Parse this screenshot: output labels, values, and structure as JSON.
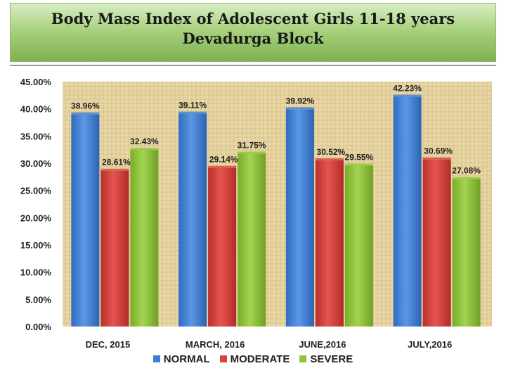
{
  "colors": {
    "normal": "#3d7fd6",
    "moderate": "#d9433f",
    "severe": "#8fc43a"
  },
  "chart_data": {
    "type": "bar",
    "title": "Body Mass Index of Adolescent Girls 11-18 years",
    "subtitle": "Devadurga Block",
    "categories": [
      "DEC, 2015",
      "MARCH, 2016",
      "JUNE,2016",
      "JULY,2016"
    ],
    "series": [
      {
        "name": "NORMAL",
        "values": [
          38.96,
          39.11,
          39.92,
          42.23
        ],
        "labels": [
          "38.96%",
          "39.11%",
          "39.92%",
          "42.23%"
        ]
      },
      {
        "name": "MODERATE",
        "values": [
          28.61,
          29.14,
          30.52,
          30.69
        ],
        "labels": [
          "28.61%",
          "29.14%",
          "30.52%",
          "30.69%"
        ]
      },
      {
        "name": "SEVERE",
        "values": [
          32.43,
          31.75,
          29.55,
          27.08
        ],
        "labels": [
          "32.43%",
          "31.75%",
          "29.55%",
          "27.08%"
        ]
      }
    ],
    "ylim": [
      0,
      45
    ],
    "yticks": [
      "0.00%",
      "5.00%",
      "10.00%",
      "15.00%",
      "20.00%",
      "25.00%",
      "30.00%",
      "35.00%",
      "40.00%",
      "45.00%"
    ],
    "xlabel": "",
    "ylabel": "",
    "legend_position": "bottom"
  }
}
